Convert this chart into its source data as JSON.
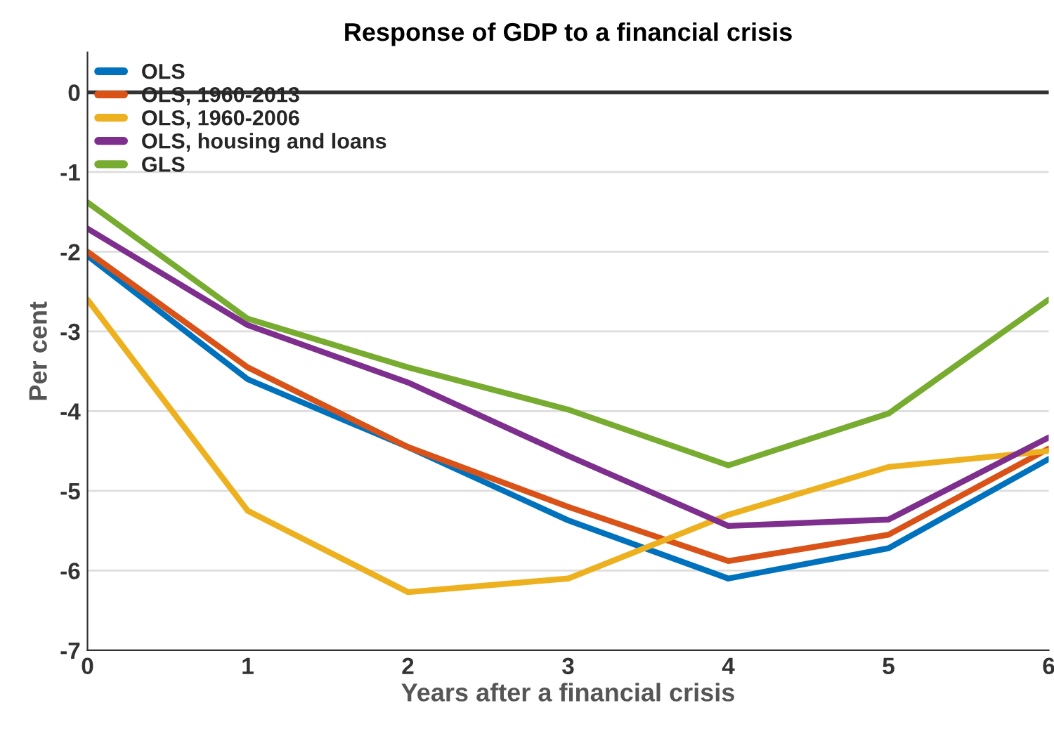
{
  "chart_data": {
    "type": "line",
    "title": "Response of GDP to a financial crisis",
    "xlabel": "Years after a financial crisis",
    "ylabel": "Per cent",
    "x": [
      0,
      1,
      2,
      3,
      4,
      5,
      6
    ],
    "series": [
      {
        "name": "OLS",
        "color": "#0072bd",
        "values": [
          -2.05,
          -3.6,
          -4.45,
          -5.37,
          -6.1,
          -5.72,
          -4.6
        ]
      },
      {
        "name": "OLS, 1960-2013",
        "color": "#d95319",
        "values": [
          -2.0,
          -3.45,
          -4.45,
          -5.2,
          -5.88,
          -5.55,
          -4.47
        ]
      },
      {
        "name": "OLS, 1960-2006",
        "color": "#edb120",
        "values": [
          -2.6,
          -5.25,
          -6.27,
          -6.1,
          -5.3,
          -4.7,
          -4.5
        ]
      },
      {
        "name": "OLS, housing and loans",
        "color": "#7e2f8e",
        "values": [
          -1.71,
          -2.92,
          -3.64,
          -4.56,
          -5.44,
          -5.36,
          -4.33
        ]
      },
      {
        "name": "GLS",
        "color": "#77ac30",
        "values": [
          -1.38,
          -2.84,
          -3.45,
          -3.98,
          -4.68,
          -4.03,
          -2.6
        ]
      }
    ],
    "xlim": [
      0,
      6
    ],
    "xticks": [
      0,
      1,
      2,
      3,
      4,
      5,
      6
    ],
    "ylim": [
      -7,
      0.5
    ],
    "yticks": [
      -7,
      -6,
      -5,
      -4,
      -3,
      -2,
      -1,
      0
    ],
    "ref_lines": [
      {
        "axis": "y",
        "value": 0,
        "color": "#333333"
      }
    ],
    "grid": "y",
    "legend": "top left",
    "marker": "none",
    "line_style": "solid"
  }
}
